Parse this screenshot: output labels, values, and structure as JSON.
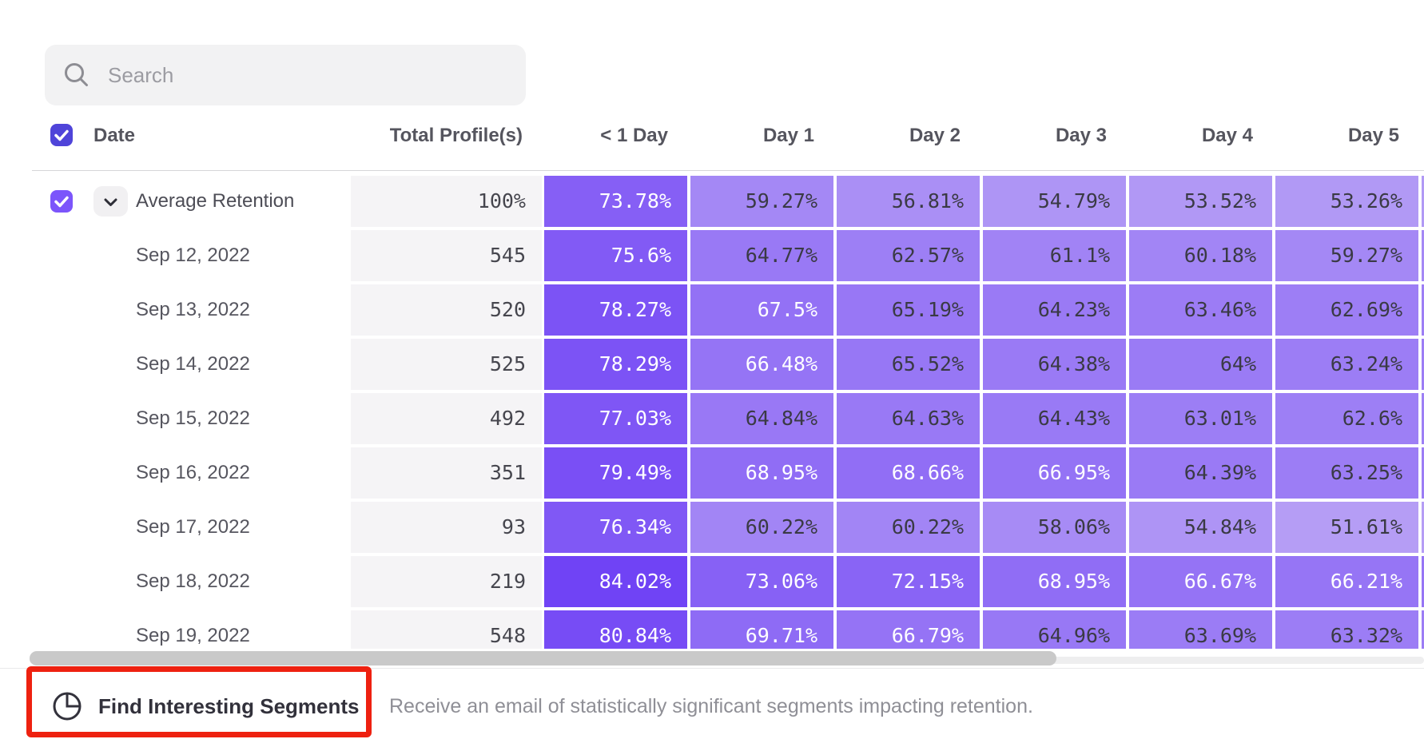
{
  "search": {
    "placeholder": "Search"
  },
  "table": {
    "header": {
      "date_label": "Date",
      "total_label": "Total Profile(s)",
      "day_columns": [
        "< 1 Day",
        "Day 1",
        "Day 2",
        "Day 3",
        "Day 4",
        "Day 5"
      ]
    },
    "rows": [
      {
        "label": "Average Retention",
        "is_average": true,
        "total": "100%",
        "values": [
          "73.78%",
          "59.27%",
          "56.81%",
          "54.79%",
          "53.52%",
          "53.26%"
        ]
      },
      {
        "label": "Sep 12, 2022",
        "total": "545",
        "values": [
          "75.6%",
          "64.77%",
          "62.57%",
          "61.1%",
          "60.18%",
          "59.27%"
        ]
      },
      {
        "label": "Sep 13, 2022",
        "total": "520",
        "values": [
          "78.27%",
          "67.5%",
          "65.19%",
          "64.23%",
          "63.46%",
          "62.69%"
        ]
      },
      {
        "label": "Sep 14, 2022",
        "total": "525",
        "values": [
          "78.29%",
          "66.48%",
          "65.52%",
          "64.38%",
          "64%",
          "63.24%"
        ]
      },
      {
        "label": "Sep 15, 2022",
        "total": "492",
        "values": [
          "77.03%",
          "64.84%",
          "64.63%",
          "64.43%",
          "63.01%",
          "62.6%"
        ]
      },
      {
        "label": "Sep 16, 2022",
        "total": "351",
        "values": [
          "79.49%",
          "68.95%",
          "68.66%",
          "66.95%",
          "64.39%",
          "63.25%"
        ]
      },
      {
        "label": "Sep 17, 2022",
        "total": "93",
        "values": [
          "76.34%",
          "60.22%",
          "60.22%",
          "58.06%",
          "54.84%",
          "51.61%"
        ]
      },
      {
        "label": "Sep 18, 2022",
        "total": "219",
        "values": [
          "84.02%",
          "73.06%",
          "72.15%",
          "68.95%",
          "66.67%",
          "66.21%"
        ]
      },
      {
        "label": "Sep 19, 2022",
        "total": "548",
        "values": [
          "80.84%",
          "69.71%",
          "66.79%",
          "64.96%",
          "63.69%",
          "63.32%"
        ]
      }
    ]
  },
  "heatmap": {
    "low_value": 50,
    "high_value": 85,
    "low_color": "#b8a2f5",
    "high_color": "#6e40f5",
    "white_text_threshold": 66,
    "dark_text_color": "#3a3a44",
    "white_text_color": "#ffffff"
  },
  "colors": {
    "row_checkbox": "#7c55fb",
    "header_checkbox": "#4f44d9",
    "highlight_red": "#ee2110"
  },
  "footer": {
    "button_label": "Find Interesting Segments",
    "description": "Receive an email of statistically significant segments impacting retention."
  }
}
